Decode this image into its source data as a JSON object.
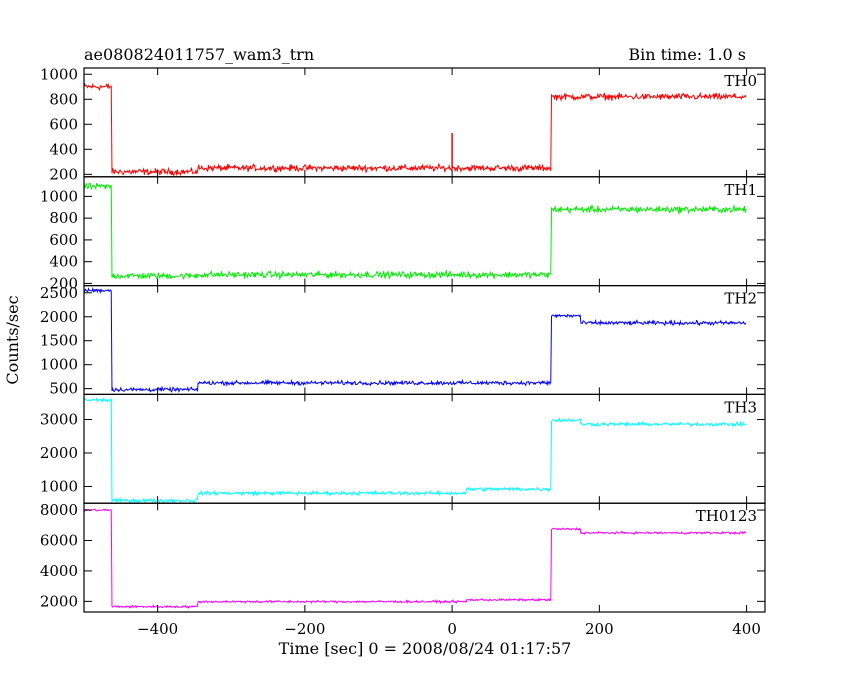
{
  "header": {
    "left_title": "ae080824011757_wam3_trn",
    "right_title": "Bin time: 1.0 s"
  },
  "xlabel": "Time [sec] 0 = 2008/08/24 01:17:57",
  "ylabel": "Counts/sec",
  "chart_data": {
    "type": "line",
    "xlim": [
      -500,
      425
    ],
    "xticks": [
      -400,
      -200,
      0,
      200,
      400
    ],
    "xtick_labels": [
      "−400",
      "−200",
      "0",
      "200",
      "400"
    ],
    "panels": [
      {
        "name": "TH0",
        "color": "#ff0000",
        "ylim": [
          180,
          1050
        ],
        "yticks": [
          200,
          400,
          600,
          800,
          1000
        ],
        "noise": 22,
        "segments": [
          [
            -500,
            -462,
            900
          ],
          [
            -462,
            -345,
            220
          ],
          [
            -345,
            135,
            250
          ],
          [
            135,
            175,
            820
          ],
          [
            175,
            400,
            820
          ]
        ],
        "spikes": [
          [
            0,
            530
          ]
        ]
      },
      {
        "name": "TH1",
        "color": "#00ee00",
        "ylim": [
          180,
          1180
        ],
        "yticks": [
          200,
          400,
          600,
          800,
          1000
        ],
        "noise": 25,
        "segments": [
          [
            -500,
            -462,
            1090
          ],
          [
            -462,
            -345,
            270
          ],
          [
            -345,
            135,
            280
          ],
          [
            135,
            175,
            880
          ],
          [
            175,
            400,
            880
          ]
        ],
        "spikes": []
      },
      {
        "name": "TH2",
        "color": "#0000ff",
        "ylim": [
          380,
          2650
        ],
        "yticks": [
          500,
          1000,
          1500,
          2000,
          2500
        ],
        "noise": 35,
        "segments": [
          [
            -500,
            -462,
            2550
          ],
          [
            -462,
            -345,
            480
          ],
          [
            -345,
            135,
            620
          ],
          [
            135,
            175,
            2020
          ],
          [
            175,
            400,
            1870
          ]
        ],
        "spikes": []
      },
      {
        "name": "TH3",
        "color": "#00ffff",
        "ylim": [
          500,
          3750
        ],
        "yticks": [
          1000,
          2000,
          3000
        ],
        "noise": 45,
        "segments": [
          [
            -500,
            -462,
            3580
          ],
          [
            -462,
            -345,
            580
          ],
          [
            -345,
            20,
            800
          ],
          [
            20,
            135,
            920
          ],
          [
            135,
            175,
            2980
          ],
          [
            175,
            400,
            2860
          ]
        ],
        "spikes": []
      },
      {
        "name": "TH0123",
        "color": "#ff00ff",
        "ylim": [
          1300,
          8450
        ],
        "yticks": [
          2000,
          4000,
          6000,
          8000
        ],
        "noise": 60,
        "segments": [
          [
            -500,
            -462,
            8000
          ],
          [
            -462,
            -345,
            1650
          ],
          [
            -345,
            20,
            1980
          ],
          [
            20,
            135,
            2100
          ],
          [
            135,
            175,
            6750
          ],
          [
            175,
            400,
            6500
          ]
        ],
        "spikes": []
      }
    ]
  }
}
